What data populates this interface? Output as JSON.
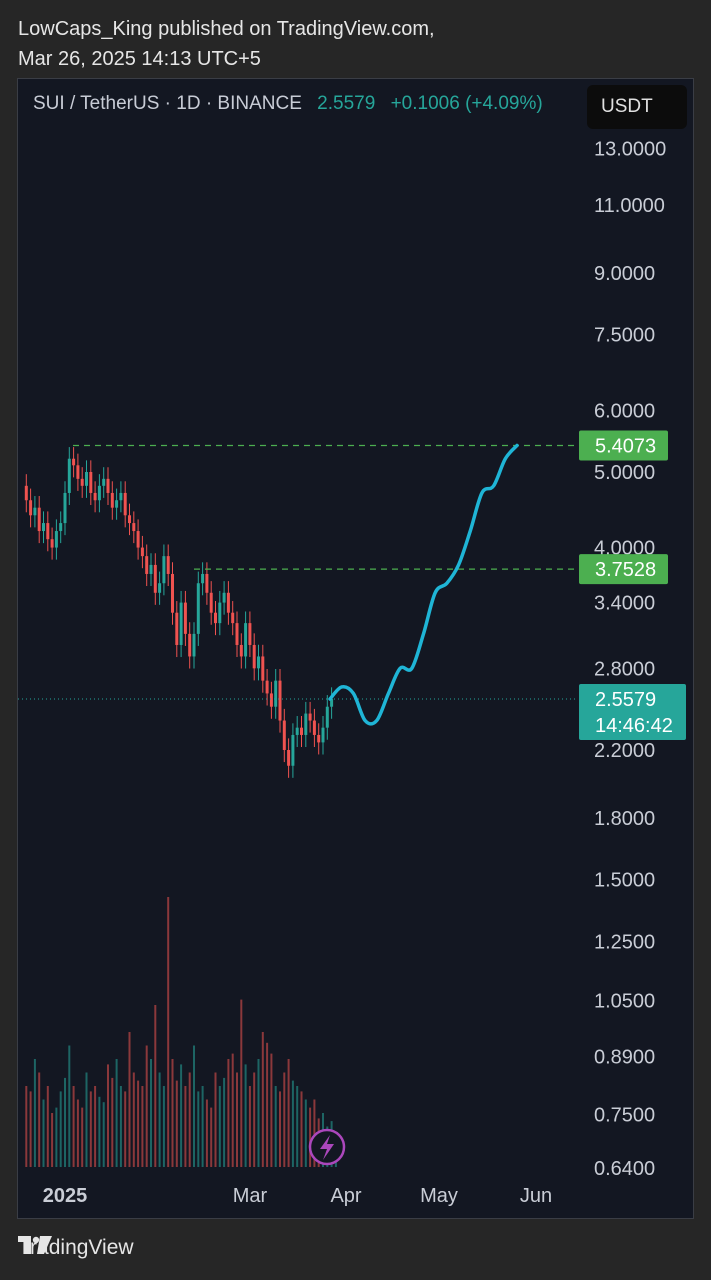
{
  "publisher": {
    "line1": "LowCaps_King published on TradingView.com,",
    "line2": "Mar 26, 2025 14:13 UTC+5"
  },
  "legend": {
    "symbol": "SUI / TetherUS · 1D · BINANCE",
    "price": "2.5579",
    "change": "+0.1006 (+4.09%)"
  },
  "currency_button": "USDT",
  "footer": {
    "brand": "TradingView",
    "logo_icon": "tradingview-logo-icon"
  },
  "colors": {
    "up": "#26a69a",
    "down": "#ef5350",
    "projection": "#1fb5d6",
    "level": "#4caf50",
    "background": "#131722"
  },
  "chart_data": {
    "type": "candlestick",
    "title": "",
    "yscale": "log",
    "yticks": [
      "13.0000",
      "11.0000",
      "9.0000",
      "7.5000",
      "6.0000",
      "5.0000",
      "4.0000",
      "3.4000",
      "2.8000",
      "2.2000",
      "1.8000",
      "1.5000",
      "1.2500",
      "1.0500",
      "0.8900",
      "0.7500",
      "0.6400"
    ],
    "xticks": [
      "2025",
      "Mar",
      "Apr",
      "May",
      "Jun"
    ],
    "levels": [
      {
        "label": "5.4073",
        "value": 5.4073
      },
      {
        "label": "3.7528",
        "value": 3.7528
      }
    ],
    "last_price": {
      "label": "2.5579",
      "value": 2.5579,
      "countdown": "14:46:42"
    },
    "price_path": [
      4.8,
      4.6,
      4.4,
      4.5,
      4.2,
      4.3,
      4.1,
      4.0,
      4.2,
      4.3,
      4.7,
      5.2,
      5.1,
      4.9,
      4.8,
      5.0,
      4.7,
      4.6,
      4.8,
      4.9,
      4.7,
      4.5,
      4.6,
      4.7,
      4.4,
      4.3,
      4.2,
      4.0,
      3.9,
      3.7,
      3.8,
      3.5,
      3.6,
      3.9,
      3.7,
      3.3,
      3.0,
      3.4,
      3.1,
      2.9,
      3.1,
      3.6,
      3.7,
      3.5,
      3.3,
      3.2,
      3.4,
      3.5,
      3.3,
      3.2,
      3.0,
      2.9,
      3.2,
      3.0,
      2.8,
      2.9,
      2.7,
      2.6,
      2.5,
      2.7,
      2.4,
      2.2,
      2.1,
      2.3,
      2.35,
      2.3,
      2.45,
      2.4,
      2.3,
      2.25,
      2.35,
      2.5,
      2.5579
    ],
    "projection": [
      2.5579,
      2.65,
      2.6,
      2.4,
      2.4,
      2.6,
      2.8,
      2.8,
      3.1,
      3.5,
      3.6,
      3.8,
      4.2,
      4.7,
      4.8,
      5.2,
      5.4073
    ],
    "volume": [
      0.3,
      0.28,
      0.4,
      0.35,
      0.25,
      0.3,
      0.2,
      0.22,
      0.28,
      0.33,
      0.45,
      0.3,
      0.25,
      0.22,
      0.35,
      0.28,
      0.3,
      0.26,
      0.24,
      0.38,
      0.33,
      0.4,
      0.3,
      0.28,
      0.5,
      0.35,
      0.32,
      0.3,
      0.45,
      0.4,
      0.6,
      0.35,
      0.3,
      1.0,
      0.4,
      0.32,
      0.38,
      0.3,
      0.35,
      0.45,
      0.28,
      0.3,
      0.25,
      0.22,
      0.35,
      0.3,
      0.33,
      0.4,
      0.42,
      0.35,
      0.62,
      0.38,
      0.3,
      0.35,
      0.4,
      0.5,
      0.46,
      0.42,
      0.3,
      0.28,
      0.35,
      0.4,
      0.32,
      0.3,
      0.28,
      0.25,
      0.22,
      0.25,
      0.18,
      0.2,
      0.15,
      0.17,
      0.12
    ]
  }
}
